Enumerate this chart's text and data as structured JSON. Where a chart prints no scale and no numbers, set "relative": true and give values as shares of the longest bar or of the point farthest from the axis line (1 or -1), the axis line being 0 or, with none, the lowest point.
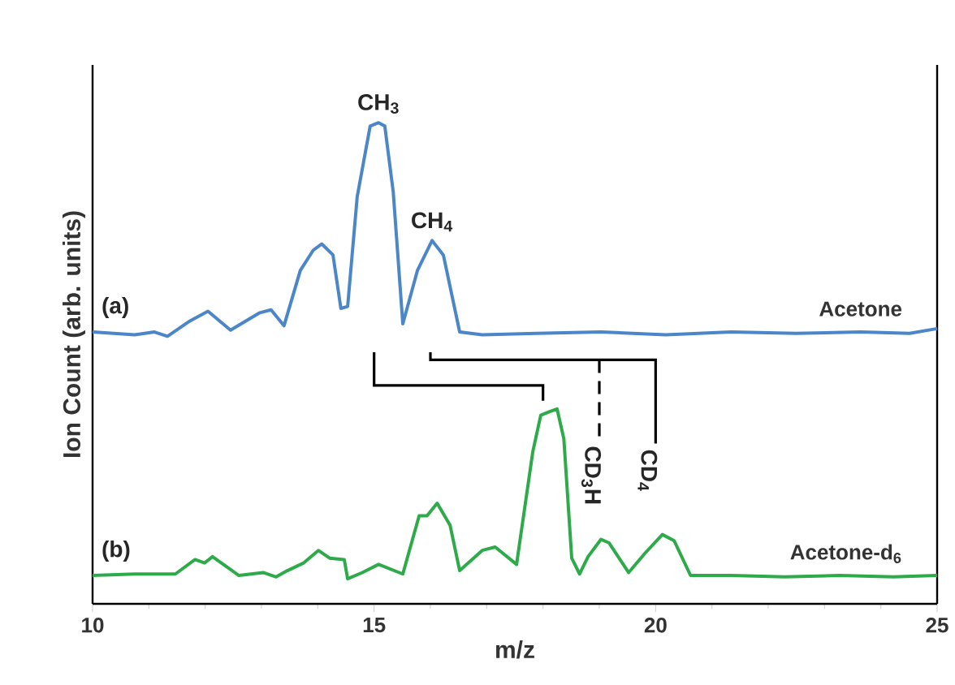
{
  "chart_data": {
    "type": "line",
    "xlabel": "m/z",
    "ylabel": "Ion Count (arb. units)",
    "xlim": [
      10,
      25
    ],
    "xticks": [
      10,
      15,
      20,
      25
    ],
    "relative": true,
    "series": [
      {
        "name": "Acetone",
        "color": "#4a86c8",
        "x": [
          10.0,
          10.75,
          11.1,
          11.33,
          11.73,
          12.05,
          12.45,
          12.68,
          12.97,
          13.17,
          13.4,
          13.69,
          13.92,
          14.07,
          14.27,
          14.41,
          14.53,
          14.7,
          14.93,
          15.08,
          15.19,
          15.34,
          15.51,
          15.77,
          16.03,
          16.23,
          16.52,
          16.92,
          17.88,
          19.03,
          20.18,
          21.34,
          22.49,
          23.64,
          24.51,
          25.0
        ],
        "values": [
          0.565,
          0.559,
          0.565,
          0.556,
          0.588,
          0.608,
          0.569,
          0.585,
          0.605,
          0.611,
          0.578,
          0.693,
          0.735,
          0.748,
          0.725,
          0.614,
          0.618,
          0.846,
          0.993,
          1.0,
          0.993,
          0.856,
          0.582,
          0.693,
          0.755,
          0.725,
          0.565,
          0.559,
          0.562,
          0.565,
          0.559,
          0.565,
          0.562,
          0.565,
          0.562,
          0.572
        ]
      },
      {
        "name": "Acetone-d$_{6}$",
        "color": "#2eaa4a",
        "x": [
          10.0,
          10.75,
          11.47,
          11.82,
          11.99,
          12.13,
          12.6,
          13.03,
          13.26,
          13.46,
          13.75,
          14.01,
          14.21,
          14.47,
          14.53,
          14.79,
          15.08,
          15.51,
          15.8,
          15.94,
          16.12,
          16.35,
          16.52,
          16.92,
          17.15,
          17.53,
          17.82,
          17.96,
          18.11,
          18.25,
          18.37,
          18.51,
          18.65,
          18.8,
          19.03,
          19.17,
          19.52,
          19.81,
          20.12,
          20.33,
          20.62,
          21.34,
          22.29,
          23.27,
          24.22,
          25.0
        ],
        "values": [
          0.059,
          0.062,
          0.062,
          0.092,
          0.085,
          0.098,
          0.059,
          0.065,
          0.056,
          0.069,
          0.085,
          0.111,
          0.095,
          0.092,
          0.052,
          0.065,
          0.082,
          0.062,
          0.183,
          0.183,
          0.209,
          0.163,
          0.069,
          0.111,
          0.118,
          0.082,
          0.317,
          0.392,
          0.399,
          0.405,
          0.343,
          0.095,
          0.062,
          0.098,
          0.134,
          0.127,
          0.065,
          0.105,
          0.144,
          0.131,
          0.059,
          0.059,
          0.056,
          0.059,
          0.056,
          0.059
        ]
      }
    ],
    "annotations": [
      "(a)",
      "(b)",
      {
        "text": "CH$_{3}$",
        "x": 15.08,
        "y": 1.0
      },
      {
        "text": "CH$_{4}$",
        "x": 16.03,
        "y": 0.755
      },
      "CD$_{3}$H",
      "CD$_{4}$"
    ]
  }
}
